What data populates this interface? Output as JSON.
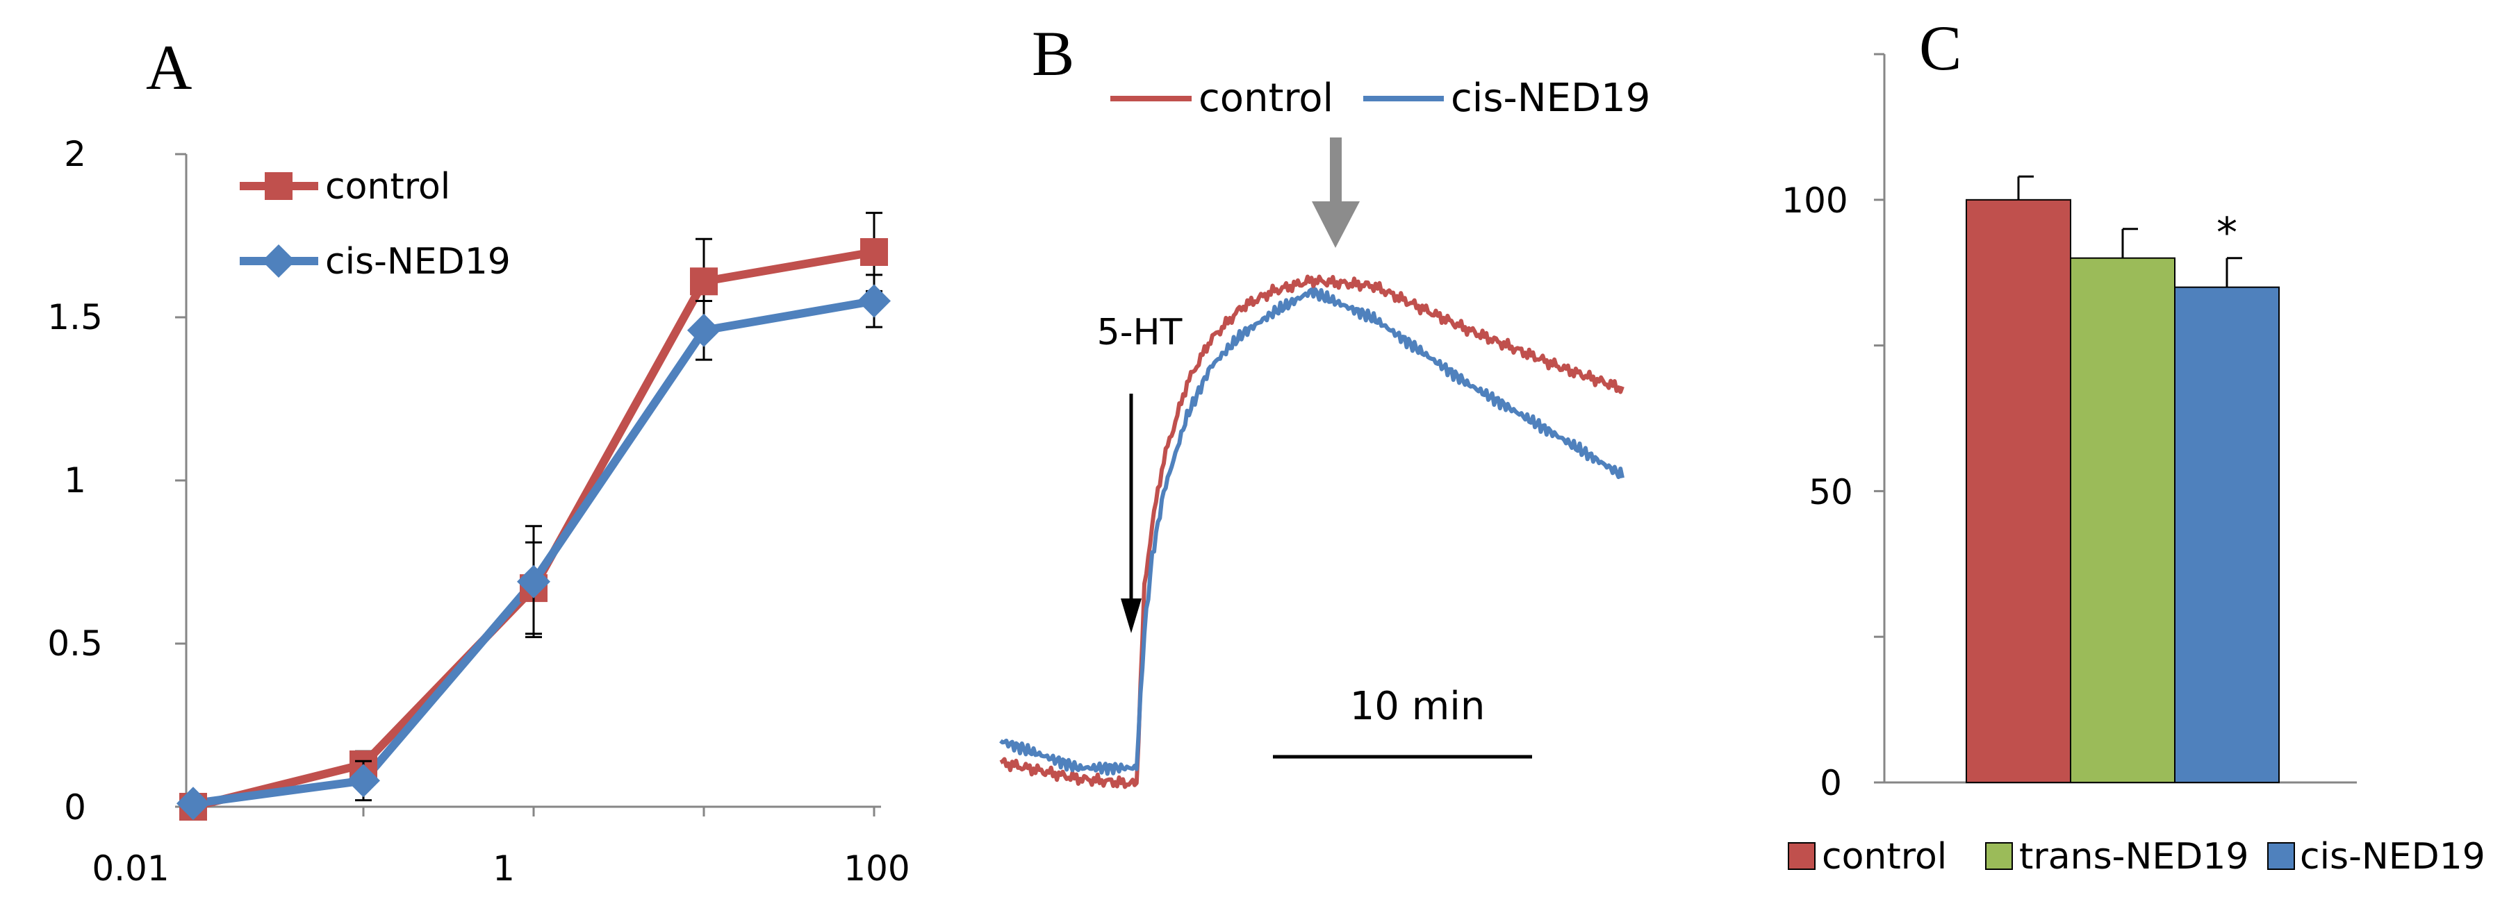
{
  "chart_data": [
    {
      "panel": "A",
      "type": "line",
      "title": "A",
      "xscale": "log",
      "x": [
        0.01,
        0.1,
        1,
        10,
        100
      ],
      "x_tick_labels": [
        "0.01",
        "1",
        "100"
      ],
      "y_tick_labels": [
        "0",
        "0.5",
        "1",
        "1.5",
        "2"
      ],
      "ylim": [
        0,
        2
      ],
      "xlabel": "",
      "ylabel": "",
      "legend_position": "top-left",
      "series": [
        {
          "name": "control",
          "color": "#C0504D",
          "marker": "square",
          "values": [
            0.0,
            0.13,
            0.67,
            1.61,
            1.7
          ],
          "errors": [
            0.02,
            0.04,
            0.14,
            0.13,
            0.12
          ]
        },
        {
          "name": "cis-NED19",
          "color": "#4F81BD",
          "marker": "diamond",
          "values": [
            0.01,
            0.08,
            0.69,
            1.46,
            1.55
          ],
          "errors": [
            0.02,
            0.06,
            0.17,
            0.09,
            0.08
          ]
        }
      ]
    },
    {
      "panel": "B",
      "type": "line",
      "title": "B",
      "legend_position": "top",
      "stimulus_label": "5-HT",
      "scale_bar_label": "10 min",
      "ylim": [
        0,
        1
      ],
      "series": [
        {
          "name": "control",
          "color": "#C0504D",
          "points": [
            [
              0,
              0.06
            ],
            [
              10,
              0.03
            ],
            [
              17.5,
              0.02
            ],
            [
              18,
              0.2
            ],
            [
              18.5,
              0.38
            ],
            [
              19.5,
              0.5
            ],
            [
              21,
              0.62
            ],
            [
              24,
              0.76
            ],
            [
              27,
              0.84
            ],
            [
              31,
              0.9
            ],
            [
              35,
              0.93
            ],
            [
              40,
              0.95
            ],
            [
              48,
              0.94
            ],
            [
              60,
              0.86
            ],
            [
              72,
              0.79
            ],
            [
              80,
              0.75
            ]
          ]
        },
        {
          "name": "cis-NED19",
          "color": "#4F81BD",
          "points": [
            [
              0,
              0.1
            ],
            [
              10,
              0.05
            ],
            [
              17.5,
              0.05
            ],
            [
              18,
              0.18
            ],
            [
              18.5,
              0.3
            ],
            [
              19.5,
              0.44
            ],
            [
              21,
              0.56
            ],
            [
              24,
              0.7
            ],
            [
              27,
              0.79
            ],
            [
              31,
              0.85
            ],
            [
              35,
              0.89
            ],
            [
              40,
              0.93
            ],
            [
              48,
              0.88
            ],
            [
              60,
              0.76
            ],
            [
              72,
              0.66
            ],
            [
              80,
              0.59
            ]
          ]
        }
      ]
    },
    {
      "panel": "C",
      "type": "bar",
      "title": "C",
      "categories": [
        "control",
        "trans-NED19",
        "cis-NED19"
      ],
      "values": [
        100,
        90,
        85
      ],
      "errors": [
        4,
        5,
        5
      ],
      "colors": [
        "#C0504D",
        "#9BBB59",
        "#4F81BD"
      ],
      "significance": [
        "",
        "",
        "*"
      ],
      "y_tick_labels": [
        "0",
        "50",
        "100"
      ],
      "ylim": [
        0,
        125
      ],
      "xlabel": "",
      "ylabel": "",
      "legend_position": "bottom"
    }
  ]
}
